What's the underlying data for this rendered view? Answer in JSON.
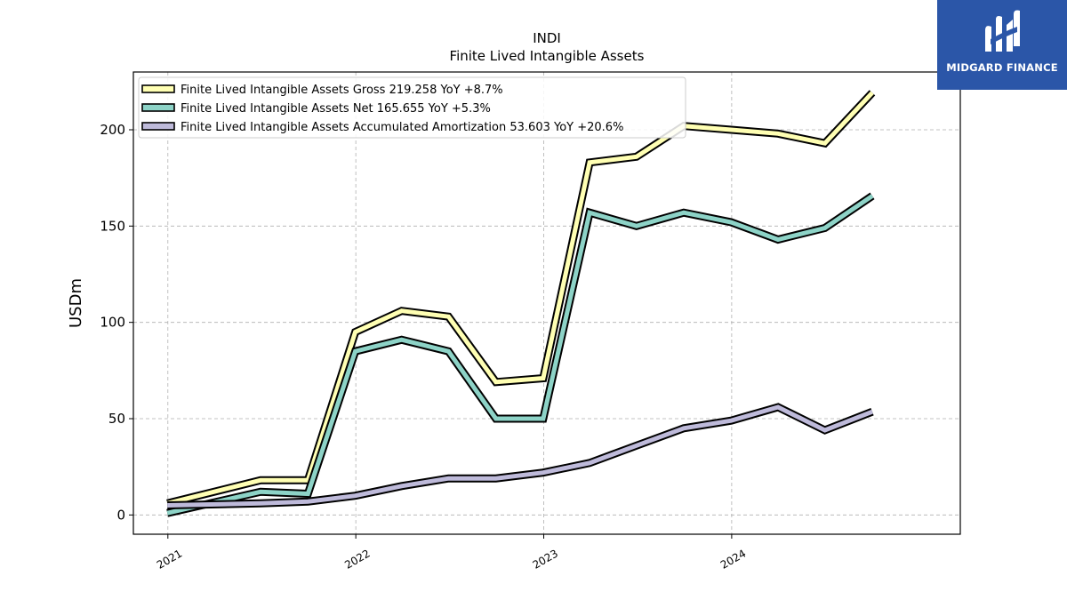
{
  "brand": {
    "name": "MIDGARD FINANCE",
    "bg_color": "#2b56a8"
  },
  "chart_data": {
    "type": "line",
    "title": "INDI",
    "subtitle": "Finite Lived Intangible Assets",
    "ylabel": "USDm",
    "xlabel": "",
    "ylim": [
      -10,
      230
    ],
    "yticks": [
      0,
      50,
      100,
      150,
      200
    ],
    "xlim": [
      "2020-10-26",
      "2025-03-20"
    ],
    "xticks": [
      "2021-01-01",
      "2022-01-01",
      "2023-01-01",
      "2024-01-01"
    ],
    "xtick_labels": [
      "2021",
      "2022",
      "2023",
      "2024"
    ],
    "grid": true,
    "legend_position": "top-left",
    "series": [
      {
        "name": "Finite Lived Intangible Assets Gross",
        "legend_label": "Finite Lived Intangible Assets Gross  219.258 YoY +8.7%",
        "color": "#ffffb3",
        "x": [
          "2020-12-31",
          "2021-06-30",
          "2021-09-30",
          "2021-12-31",
          "2022-03-31",
          "2022-06-30",
          "2022-09-30",
          "2022-12-31",
          "2023-03-31",
          "2023-06-30",
          "2023-09-30",
          "2023-12-31",
          "2024-03-31",
          "2024-06-30",
          "2024-09-30"
        ],
        "values": [
          6,
          18,
          18,
          95,
          106,
          103,
          69,
          71,
          183,
          186,
          202,
          200,
          198,
          193,
          219.258
        ]
      },
      {
        "name": "Finite Lived Intangible Assets Net",
        "legend_label": "Finite Lived Intangible Assets Net  165.655 YoY +5.3%",
        "color": "#8dd3c7",
        "x": [
          "2020-12-31",
          "2021-06-30",
          "2021-09-30",
          "2021-12-31",
          "2022-03-31",
          "2022-06-30",
          "2022-09-30",
          "2022-12-31",
          "2023-03-31",
          "2023-06-30",
          "2023-09-30",
          "2023-12-31",
          "2024-03-31",
          "2024-06-30",
          "2024-09-30"
        ],
        "values": [
          1,
          12,
          11,
          85,
          91,
          85,
          50,
          50,
          157,
          150,
          157,
          152,
          143,
          149,
          165.655
        ]
      },
      {
        "name": "Finite Lived Intangible Assets Accumulated Amortization",
        "legend_label": "Finite Lived Intangible Assets Accumulated Amortization  53.603 YoY +20.6%",
        "color": "#bebada",
        "x": [
          "2020-12-31",
          "2021-06-30",
          "2021-09-30",
          "2021-12-31",
          "2022-03-31",
          "2022-06-30",
          "2022-09-30",
          "2022-12-31",
          "2023-03-31",
          "2023-06-30",
          "2023-09-30",
          "2023-12-31",
          "2024-03-31",
          "2024-06-30",
          "2024-09-30"
        ],
        "values": [
          5,
          6,
          7,
          10,
          15,
          19,
          19,
          22,
          27,
          36,
          45,
          49,
          56,
          44,
          53.603
        ]
      }
    ]
  }
}
